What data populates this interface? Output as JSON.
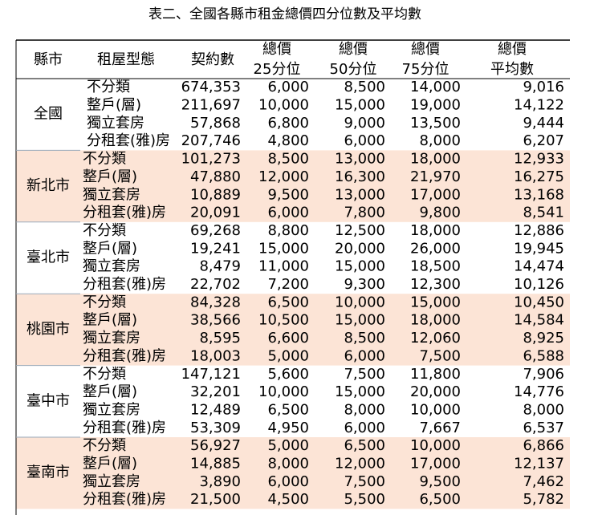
{
  "header": {
    "title": "表二、全國各縣市租金總價四分位數及平均數"
  },
  "table": {
    "columns": [
      "縣市",
      "租屋型態",
      "契約數",
      [
        "總價",
        "25分位"
      ],
      [
        "總價",
        "50分位"
      ],
      [
        "總價",
        "75分位"
      ],
      [
        "總價",
        "平均數"
      ]
    ],
    "groups": [
      {
        "city": "全國",
        "rows": [
          [
            "不分類",
            "674,353",
            "6,000",
            "8,500",
            "14,000",
            "9,016"
          ],
          [
            "整戶(層)",
            "211,697",
            "10,000",
            "15,000",
            "19,000",
            "14,122"
          ],
          [
            "獨立套房",
            "57,868",
            "6,800",
            "9,000",
            "13,500",
            "9,444"
          ],
          [
            "分租套(雅)房",
            "207,746",
            "4,800",
            "6,000",
            "8,000",
            "6,207"
          ]
        ]
      },
      {
        "city": "新北市",
        "rows": [
          [
            "不分類",
            "101,273",
            "8,500",
            "13,000",
            "18,000",
            "12,933"
          ],
          [
            "整戶(層)",
            "47,880",
            "12,000",
            "16,300",
            "21,970",
            "16,275"
          ],
          [
            "獨立套房",
            "10,889",
            "9,500",
            "13,000",
            "17,000",
            "13,168"
          ],
          [
            "分租套(雅)房",
            "20,091",
            "6,000",
            "7,800",
            "9,800",
            "8,541"
          ]
        ]
      },
      {
        "city": "臺北市",
        "rows": [
          [
            "不分類",
            "69,268",
            "8,800",
            "12,500",
            "18,000",
            "12,886"
          ],
          [
            "整戶(層)",
            "19,241",
            "15,000",
            "20,000",
            "26,000",
            "19,945"
          ],
          [
            "獨立套房",
            "8,479",
            "11,000",
            "15,000",
            "18,500",
            "14,474"
          ],
          [
            "分租套(雅)房",
            "22,702",
            "7,200",
            "9,300",
            "12,300",
            "10,126"
          ]
        ]
      },
      {
        "city": "桃園市",
        "rows": [
          [
            "不分類",
            "84,328",
            "6,500",
            "10,000",
            "15,000",
            "10,450"
          ],
          [
            "整戶(層)",
            "38,566",
            "10,500",
            "15,000",
            "18,000",
            "14,584"
          ],
          [
            "獨立套房",
            "8,595",
            "6,600",
            "8,500",
            "12,060",
            "8,925"
          ],
          [
            "分租套(雅)房",
            "18,003",
            "5,000",
            "6,000",
            "7,500",
            "6,588"
          ]
        ]
      },
      {
        "city": "臺中市",
        "rows": [
          [
            "不分類",
            "147,121",
            "5,600",
            "7,500",
            "11,800",
            "7,906"
          ],
          [
            "整戶(層)",
            "32,201",
            "10,000",
            "15,000",
            "20,000",
            "14,776"
          ],
          [
            "獨立套房",
            "12,489",
            "6,500",
            "8,000",
            "10,000",
            "8,000"
          ],
          [
            "分租套(雅)房",
            "53,309",
            "4,950",
            "6,000",
            "7,667",
            "6,537"
          ]
        ]
      },
      {
        "city": "臺南市",
        "rows": [
          [
            "不分類",
            "56,927",
            "5,000",
            "6,500",
            "10,000",
            "6,866"
          ],
          [
            "整戶(層)",
            "14,885",
            "8,000",
            "12,000",
            "17,000",
            "12,137"
          ],
          [
            "獨立套房",
            "3,890",
            "6,000",
            "7,500",
            "9,500",
            "7,462"
          ],
          [
            "分租套(雅)房",
            "21,500",
            "4,500",
            "5,500",
            "6,500",
            "5,782"
          ]
        ]
      }
    ]
  }
}
